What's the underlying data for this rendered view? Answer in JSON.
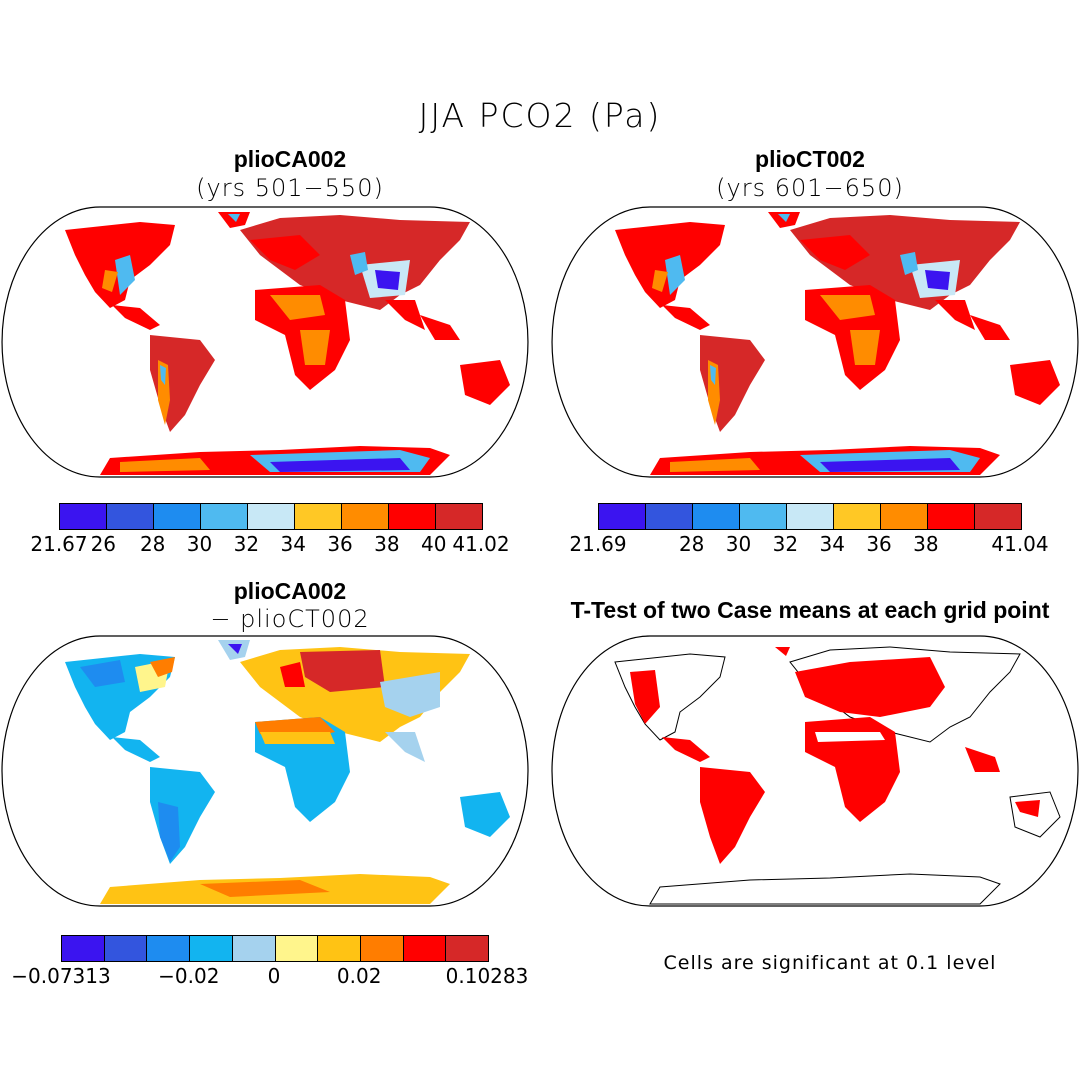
{
  "title": "JJA PCO2 (Pa)",
  "colors": {
    "land_red": "#ff0000",
    "land_darkred": "#d62828",
    "ocean": "#ffffff",
    "outline": "#000000"
  },
  "panels": {
    "a": {
      "title": "plioCA002",
      "subtitle": "(yrs 501−550)",
      "colorbar": {
        "colors": [
          "#3b14f0",
          "#3355de",
          "#1e8cf0",
          "#4fbaf0",
          "#c8e8f6",
          "#ffc825",
          "#ff8c00",
          "#ff0000",
          "#d62828"
        ],
        "ticks": [
          "21.67",
          "26",
          "28",
          "30",
          "32",
          "34",
          "36",
          "38",
          "40",
          "41.02"
        ]
      }
    },
    "b": {
      "title": "plioCT002",
      "subtitle": "(yrs 601−650)",
      "colorbar": {
        "colors": [
          "#3b14f0",
          "#3355de",
          "#1e8cf0",
          "#4fbaf0",
          "#c8e8f6",
          "#ffc825",
          "#ff8c00",
          "#ff0000",
          "#d62828"
        ],
        "ticks": [
          "21.69",
          "28",
          "30",
          "32",
          "34",
          "36",
          "38",
          "41.04"
        ]
      }
    },
    "c": {
      "title": "plioCA002",
      "subtitle": "− plioCT002",
      "colorbar": {
        "colors": [
          "#3b14f0",
          "#3355de",
          "#1e8cf0",
          "#12b4f0",
          "#a5d2ee",
          "#fff58c",
          "#ffc314",
          "#ff7d00",
          "#ff0000",
          "#d62828"
        ],
        "ticks": [
          "−0.07313",
          "−0.02",
          "0",
          "0.02",
          "0.10283"
        ]
      }
    },
    "d": {
      "title": "T-Test of two Case means at each grid point",
      "note": "Cells are significant at 0.1 level"
    }
  }
}
